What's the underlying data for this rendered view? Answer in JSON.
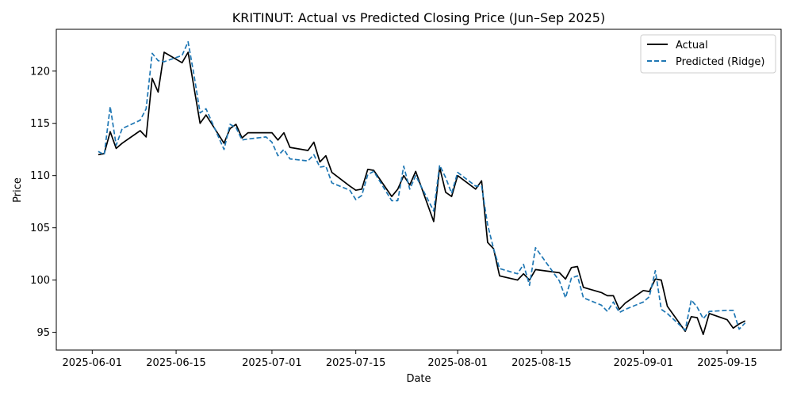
{
  "chart_data": {
    "type": "line",
    "title": "KRITINUT: Actual vs Predicted Closing Price (Jun–Sep 2025)",
    "xlabel": "Date",
    "ylabel": "Price",
    "xlim": [
      "2025-05-26",
      "2025-09-24"
    ],
    "ylim": [
      93.3,
      124.0
    ],
    "x_ticks": [
      "2025-06-01",
      "2025-06-15",
      "2025-07-01",
      "2025-07-15",
      "2025-08-01",
      "2025-08-15",
      "2025-09-01",
      "2025-09-15"
    ],
    "y_ticks": [
      95,
      100,
      105,
      110,
      115,
      120
    ],
    "grid": false,
    "legend_position": "top-right",
    "dates": [
      "2025-06-02",
      "2025-06-03",
      "2025-06-04",
      "2025-06-05",
      "2025-06-06",
      "2025-06-09",
      "2025-06-10",
      "2025-06-11",
      "2025-06-12",
      "2025-06-13",
      "2025-06-16",
      "2025-06-17",
      "2025-06-18",
      "2025-06-19",
      "2025-06-20",
      "2025-06-23",
      "2025-06-24",
      "2025-06-25",
      "2025-06-26",
      "2025-06-27",
      "2025-06-30",
      "2025-07-01",
      "2025-07-02",
      "2025-07-03",
      "2025-07-04",
      "2025-07-07",
      "2025-07-08",
      "2025-07-09",
      "2025-07-10",
      "2025-07-11",
      "2025-07-14",
      "2025-07-15",
      "2025-07-16",
      "2025-07-17",
      "2025-07-18",
      "2025-07-21",
      "2025-07-22",
      "2025-07-23",
      "2025-07-24",
      "2025-07-25",
      "2025-07-28",
      "2025-07-29",
      "2025-07-30",
      "2025-07-31",
      "2025-08-01",
      "2025-08-04",
      "2025-08-05",
      "2025-08-06",
      "2025-08-07",
      "2025-08-08",
      "2025-08-11",
      "2025-08-12",
      "2025-08-13",
      "2025-08-14",
      "2025-08-18",
      "2025-08-19",
      "2025-08-20",
      "2025-08-21",
      "2025-08-22",
      "2025-08-25",
      "2025-08-26",
      "2025-08-27",
      "2025-08-28",
      "2025-08-29",
      "2025-09-01",
      "2025-09-02",
      "2025-09-03",
      "2025-09-04",
      "2025-09-05",
      "2025-09-08",
      "2025-09-09",
      "2025-09-10",
      "2025-09-11",
      "2025-09-12",
      "2025-09-15",
      "2025-09-16",
      "2025-09-17",
      "2025-09-18"
    ],
    "series": [
      {
        "name": "Actual",
        "color": "#000000",
        "style": "solid",
        "values": [
          112.0,
          112.1,
          114.2,
          112.6,
          113.1,
          114.3,
          113.7,
          119.3,
          118.0,
          121.8,
          120.8,
          121.8,
          118.4,
          115.0,
          115.8,
          113.1,
          114.5,
          114.9,
          113.6,
          114.1,
          114.1,
          114.1,
          113.4,
          114.1,
          112.7,
          112.4,
          113.2,
          111.3,
          111.9,
          110.3,
          109.0,
          108.6,
          108.7,
          110.6,
          110.5,
          108.0,
          108.7,
          110.0,
          109.1,
          110.4,
          105.6,
          110.8,
          108.4,
          108.0,
          110.0,
          108.7,
          109.5,
          103.6,
          103.0,
          100.4,
          100.0,
          100.6,
          100.0,
          101.0,
          100.7,
          100.1,
          101.2,
          101.3,
          99.3,
          98.8,
          98.5,
          98.5,
          97.2,
          97.8,
          99.0,
          98.9,
          100.1,
          100.0,
          97.5,
          95.1,
          96.5,
          96.4,
          94.8,
          96.8,
          96.2,
          95.4,
          95.8,
          96.1
        ]
      },
      {
        "name": "Predicted (Ridge)",
        "color": "#1f77b4",
        "style": "dashed",
        "values": [
          112.3,
          112.0,
          116.6,
          112.9,
          114.5,
          115.3,
          116.4,
          121.7,
          121.0,
          120.9,
          121.5,
          122.8,
          119.6,
          116.0,
          116.4,
          112.5,
          114.9,
          114.6,
          113.4,
          113.5,
          113.7,
          113.2,
          111.9,
          112.5,
          111.6,
          111.4,
          112.0,
          110.8,
          110.9,
          109.3,
          108.6,
          107.7,
          108.1,
          110.1,
          110.4,
          107.6,
          107.6,
          110.9,
          108.7,
          110.0,
          106.6,
          111.0,
          109.8,
          108.3,
          110.3,
          109.0,
          109.0,
          105.3,
          103.0,
          101.1,
          100.6,
          101.5,
          99.5,
          103.1,
          99.9,
          98.3,
          100.2,
          100.4,
          98.3,
          97.6,
          97.0,
          97.9,
          96.9,
          97.2,
          97.9,
          98.4,
          100.9,
          97.2,
          96.8,
          95.2,
          98.1,
          97.4,
          96.3,
          97.0,
          97.1,
          97.1,
          95.3,
          95.9
        ]
      }
    ]
  }
}
